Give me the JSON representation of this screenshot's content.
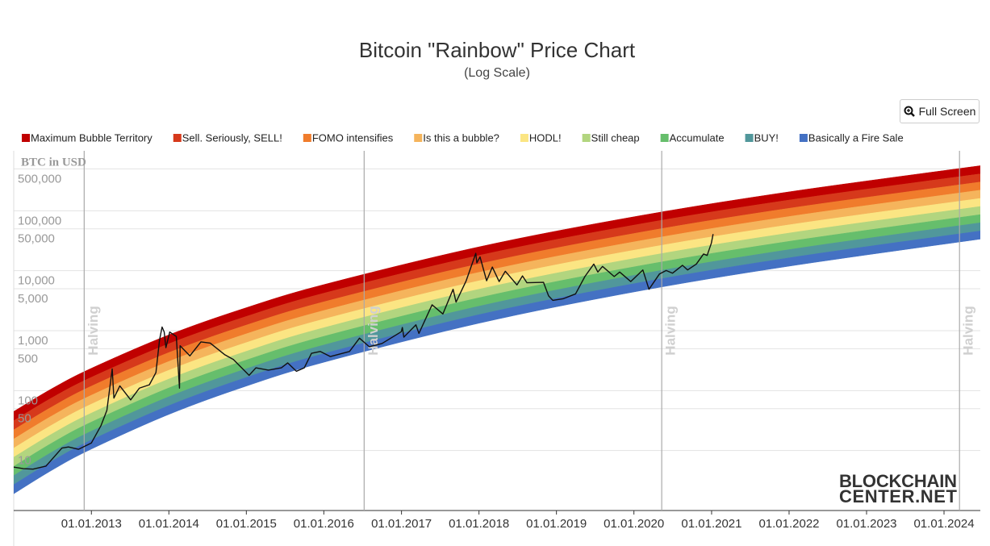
{
  "chart_data": {
    "type": "rainbow",
    "title": "Bitcoin \"Rainbow\" Price Chart",
    "subtitle": "(Log Scale)",
    "y_axis_label": "BTC in USD",
    "button": "Full Screen",
    "watermark": [
      "BLOCKCHAIN",
      "CENTER.NET"
    ],
    "log_scale": true,
    "grid": true,
    "ylim": [
      1,
      1000000
    ],
    "yticks": [
      10,
      50,
      100,
      500,
      {
        "value": 1000,
        "label": "1,000"
      },
      {
        "value": 5000,
        "label": "5,000"
      },
      {
        "value": 10000,
        "label": "10,000"
      },
      {
        "value": 50000,
        "label": "50,000"
      },
      {
        "value": 100000,
        "label": "100,000"
      },
      {
        "value": 500000,
        "label": "500,000"
      }
    ],
    "xlim": [
      "2012-01-01",
      "2024-06-20"
    ],
    "xticks": [
      {
        "value": "2013-01-01",
        "label": "01.01.2013"
      },
      {
        "value": "2014-01-01",
        "label": "01.01.2014"
      },
      {
        "value": "2015-01-01",
        "label": "01.01.2015"
      },
      {
        "value": "2016-01-01",
        "label": "01.01.2016"
      },
      {
        "value": "2017-01-01",
        "label": "01.01.2017"
      },
      {
        "value": "2018-01-01",
        "label": "01.01.2018"
      },
      {
        "value": "2019-01-01",
        "label": "01.01.2019"
      },
      {
        "value": "2020-01-01",
        "label": "01.01.2020"
      },
      {
        "value": "2021-01-01",
        "label": "01.01.2021"
      },
      {
        "value": "2022-01-01",
        "label": "01.01.2022"
      },
      {
        "value": "2023-01-01",
        "label": "01.01.2023"
      },
      {
        "value": "2024-01-01",
        "label": "01.01.2024"
      }
    ],
    "halvings": [
      {
        "x": "2012-11-28",
        "label": "Halving"
      },
      {
        "x": "2016-07-09",
        "label": "Halving"
      },
      {
        "x": "2020-05-11",
        "label": "Halving"
      },
      {
        "x": "2024-03-14",
        "label": "Halving"
      }
    ],
    "band_x": [
      "2012-01-01",
      "2012-07-01",
      "2013-01-01",
      "2014-01-01",
      "2015-01-01",
      "2016-01-01",
      "2018-01-01",
      "2020-01-01",
      "2022-01-01",
      "2024-06-20"
    ],
    "rainbow_floor": [
      1.9,
      4.75,
      10.6,
      40.1,
      119,
      297,
      1330,
      4420,
      11900,
      33700
    ],
    "series": [
      {
        "name": "Maximum Bubble Territory",
        "color": "#c00000",
        "values": [
          44.9,
          109,
          236,
          851,
          2420,
          5870,
          25000,
          79400,
          207000,
          565000
        ]
      },
      {
        "name": "Sell. Seriously, SELL!",
        "color": "#d6391b",
        "values": [
          31.6,
          76.7,
          167,
          605,
          1730,
          4220,
          18000,
          57700,
          151000,
          413000
        ]
      },
      {
        "name": "FOMO intensifies",
        "color": "#f07c2c",
        "values": [
          22.2,
          54.2,
          119,
          432,
          1240,
          3030,
          13000,
          41800,
          110000,
          302000
        ]
      },
      {
        "name": "Is this a bubble?",
        "color": "#f5b45c",
        "values": [
          15.6,
          38.3,
          83.9,
          307,
          887,
          2170,
          9400,
          30300,
          80200,
          221000
        ]
      },
      {
        "name": "HODL!",
        "color": "#fbe583",
        "values": [
          11.0,
          27.0,
          59.6,
          219,
          634,
          1560,
          6790,
          22000,
          58300,
          161000
        ]
      },
      {
        "name": "Still cheap",
        "color": "#b2d57f",
        "values": [
          7.74,
          19.1,
          42.2,
          156,
          453,
          1120,
          4910,
          16000,
          42500,
          118000
        ]
      },
      {
        "name": "Accumulate",
        "color": "#66be6c",
        "values": [
          5.44,
          13.5,
          29.9,
          111,
          324,
          804,
          3540,
          11600,
          30900,
          86300
        ]
      },
      {
        "name": "BUY!",
        "color": "#51979b",
        "values": [
          3.83,
          9.53,
          21.1,
          79.1,
          232,
          577,
          2560,
          8390,
          22500,
          63100
        ]
      },
      {
        "name": "Basically a Fire Sale",
        "color": "#4471c3",
        "values": [
          2.7,
          6.73,
          15.0,
          56.2,
          166,
          414,
          1850,
          6080,
          16400,
          46100
        ]
      }
    ],
    "price": {
      "color": "#111111",
      "x": [
        "2012-01-01",
        "2012-02-15",
        "2012-04-01",
        "2012-06-01",
        "2012-08-15",
        "2012-09-15",
        "2012-11-01",
        "2013-01-01",
        "2013-02-15",
        "2013-03-15",
        "2013-04-09",
        "2013-04-17",
        "2013-05-15",
        "2013-07-05",
        "2013-08-15",
        "2013-10-01",
        "2013-11-01",
        "2013-11-18",
        "2013-11-30",
        "2013-12-10",
        "2013-12-18",
        "2014-01-05",
        "2014-02-05",
        "2014-02-20",
        "2014-02-23",
        "2014-04-10",
        "2014-06-01",
        "2014-07-15",
        "2014-09-20",
        "2014-11-01",
        "2015-01-14",
        "2015-02-15",
        "2015-04-15",
        "2015-06-15",
        "2015-07-15",
        "2015-08-25",
        "2015-10-01",
        "2015-11-04",
        "2015-12-15",
        "2016-02-01",
        "2016-05-01",
        "2016-06-17",
        "2016-08-02",
        "2016-10-01",
        "2016-12-31",
        "2017-01-05",
        "2017-01-12",
        "2017-03-10",
        "2017-03-24",
        "2017-05-25",
        "2017-07-15",
        "2017-09-01",
        "2017-09-15",
        "2017-11-01",
        "2017-12-17",
        "2017-12-22",
        "2018-01-06",
        "2018-02-06",
        "2018-03-05",
        "2018-04-06",
        "2018-05-05",
        "2018-06-29",
        "2018-07-25",
        "2018-08-15",
        "2018-11-01",
        "2018-11-25",
        "2018-12-15",
        "2019-02-01",
        "2019-04-01",
        "2019-05-15",
        "2019-06-26",
        "2019-07-15",
        "2019-08-06",
        "2019-09-30",
        "2019-10-26",
        "2019-12-17",
        "2020-02-12",
        "2020-03-12",
        "2020-04-30",
        "2020-06-01",
        "2020-07-01",
        "2020-08-17",
        "2020-09-10",
        "2020-10-21",
        "2020-11-24",
        "2020-12-11",
        "2020-12-31",
        "2021-01-08"
      ],
      "values": [
        5.3,
        5,
        4.9,
        5.5,
        11,
        11.5,
        10.5,
        13.4,
        26,
        47,
        230,
        75,
        120,
        70,
        110,
        125,
        200,
        700,
        1150,
        950,
        520,
        950,
        800,
        110,
        560,
        380,
        650,
        620,
        400,
        330,
        180,
        240,
        220,
        240,
        290,
        210,
        240,
        420,
        450,
        370,
        450,
        750,
        540,
        610,
        960,
        1130,
        780,
        1250,
        900,
        2700,
        1900,
        4900,
        3000,
        6700,
        19500,
        13500,
        17000,
        6800,
        11500,
        6600,
        9800,
        5800,
        8200,
        6300,
        6400,
        3800,
        3200,
        3400,
        4100,
        8000,
        12900,
        9500,
        11800,
        8000,
        9500,
        6600,
        10300,
        4900,
        8800,
        10100,
        9100,
        12300,
        10300,
        12900,
        19000,
        18000,
        29000,
        40800
      ]
    }
  }
}
